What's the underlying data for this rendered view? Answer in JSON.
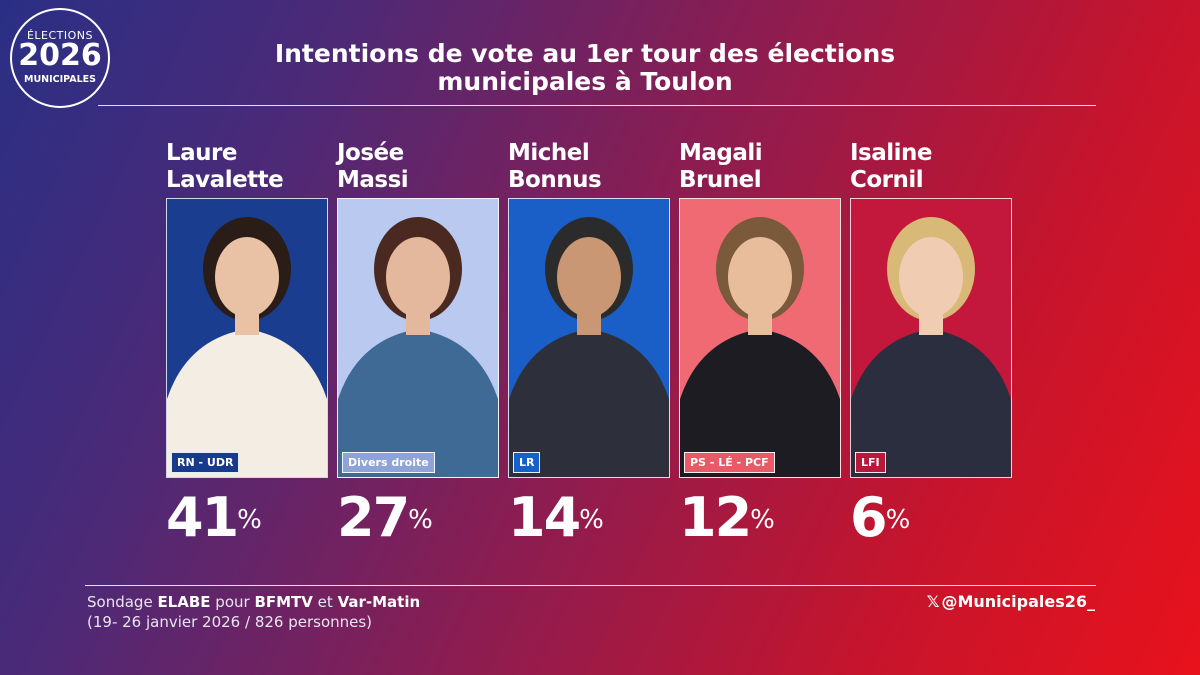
{
  "logo": {
    "line1": "ÉLECTIONS",
    "line2": "2026",
    "line3": "MUNICIPALES"
  },
  "title": "Intentions de vote au 1er tour des élections\nmunicipales à Toulon",
  "candidates": [
    {
      "first": "Laure",
      "last": "Lavalette",
      "party": "RN - UDR",
      "percent": "41",
      "photo_bg": "#1a3d8f",
      "badge_bg": "#173a8c"
    },
    {
      "first": "Josée",
      "last": "Massi",
      "party": "Divers droite",
      "percent": "27",
      "photo_bg": "#b9c9ef",
      "badge_bg": "#8ea4d8"
    },
    {
      "first": "Michel",
      "last": "Bonnus",
      "party": "LR",
      "percent": "14",
      "photo_bg": "#1a5fc8",
      "badge_bg": "#1660cc"
    },
    {
      "first": "Magali",
      "last": "Brunel",
      "party": "PS - LÉ - PCF",
      "percent": "12",
      "photo_bg": "#f06a73",
      "badge_bg": "#e85a67"
    },
    {
      "first": "Isaline",
      "last": "Cornil",
      "party": "LFI",
      "percent": "6",
      "photo_bg": "#c4173c",
      "badge_bg": "#b8183a"
    }
  ],
  "percent_symbol": "%",
  "source": {
    "pre": "Sondage ",
    "pollster": "ELABE",
    "mid": " pour ",
    "media1": "BFMTV",
    "and": " et ",
    "media2": "Var-Matin",
    "details": "(19- 26 janvier 2026 / 826 personnes)"
  },
  "handle": {
    "icon": "x-logo-icon",
    "text": "@Municipales26_"
  }
}
